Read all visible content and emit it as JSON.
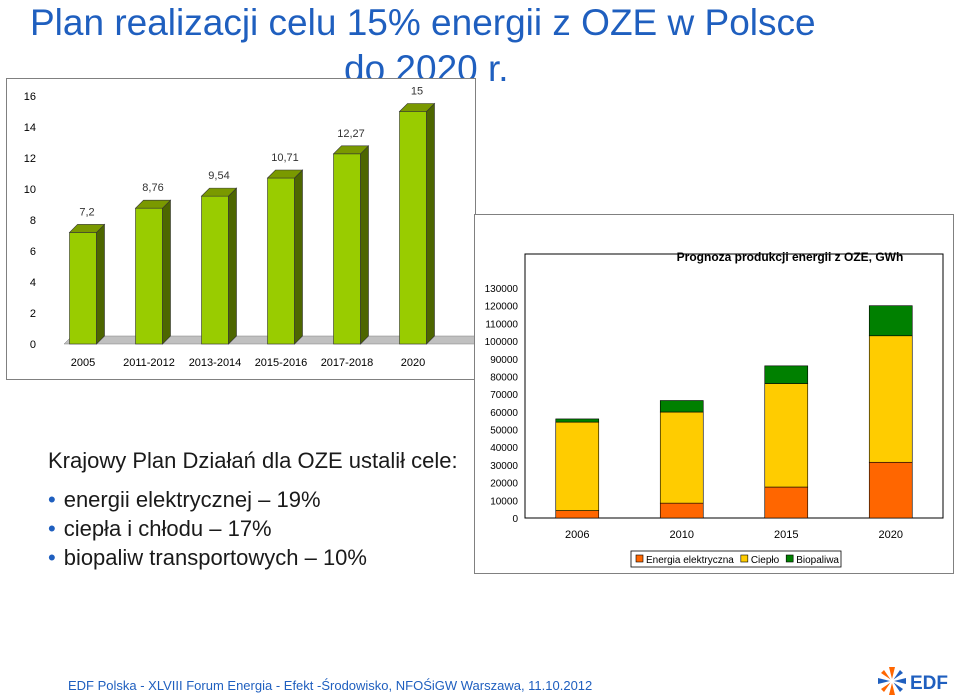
{
  "title": {
    "line1": "Plan realizacji celu 15% energii z OZE w Polsce",
    "line2": "do 2020 r."
  },
  "chart_data": [
    {
      "type": "bar",
      "title": "",
      "categories": [
        "2005",
        "2011-2012",
        "2013-2014",
        "2015-2016",
        "2017-2018",
        "2020"
      ],
      "values": [
        7.2,
        8.76,
        9.54,
        10.71,
        12.27,
        15
      ],
      "value_labels": [
        "7,2",
        "8,76",
        "9,54",
        "10,71",
        "12,27",
        "15"
      ],
      "yticks": [
        0,
        2,
        4,
        6,
        8,
        10,
        12,
        14,
        16
      ],
      "ylim": [
        0,
        16
      ],
      "xlabel": "",
      "ylabel": "",
      "bar_color": "#99cc00",
      "grid": false,
      "legend": "none"
    },
    {
      "type": "bar",
      "stacked": true,
      "title": "Prognoza produkcji energii z OZE, GWh",
      "categories": [
        "2006",
        "2010",
        "2015",
        "2020"
      ],
      "series": [
        {
          "name": "Energia elektryczna",
          "color": "#ff6600",
          "values": [
            4200,
            8400,
            17500,
            31500
          ]
        },
        {
          "name": "Ciepło",
          "color": "#ffcc00",
          "values": [
            50000,
            51500,
            58500,
            71500
          ]
        },
        {
          "name": "Biopaliwa",
          "color": "#008000",
          "values": [
            1800,
            6500,
            10000,
            17000
          ]
        }
      ],
      "yticks": [
        0,
        10000,
        20000,
        30000,
        40000,
        50000,
        60000,
        70000,
        80000,
        90000,
        100000,
        110000,
        120000,
        130000
      ],
      "ylim": [
        0,
        130000
      ],
      "xlabel": "",
      "ylabel": "",
      "grid": false,
      "legend": "bottom"
    }
  ],
  "text": {
    "heading": "Krajowy Plan Działań dla OZE ustalił cele:",
    "bullets": [
      "energii elektrycznej – 19%",
      "ciepła i chłodu – 17%",
      "biopaliw transportowych – 10%"
    ]
  },
  "footer": {
    "text": "EDF Polska - XLVIII Forum Energia - Efekt -Środowisko, NFOŚiGW Warszawa, 11.10.2012",
    "logo_text": "EDF",
    "colors": {
      "blue": "#1f5fbf",
      "orange": "#ff6600"
    }
  }
}
